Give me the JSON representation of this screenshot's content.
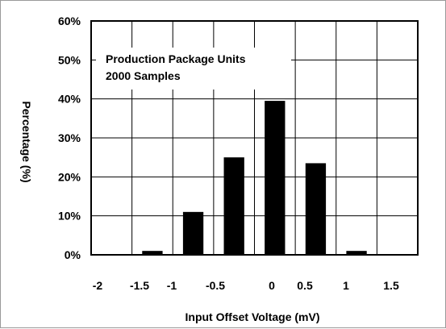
{
  "chart_data": {
    "type": "bar",
    "title": "",
    "xlabel": "Input Offset Voltage (mV)",
    "ylabel": "Percentage (%)",
    "xlim": [
      -2,
      2
    ],
    "ylim": [
      0,
      60
    ],
    "x_tick_labels": [
      "-2",
      "-1.5",
      "-1",
      "-0.5",
      "0",
      "0.5",
      "1",
      "1.5"
    ],
    "y_tick_labels": [
      "0%",
      "10%",
      "20%",
      "30%",
      "40%",
      "50%",
      "60%"
    ],
    "grid": true,
    "annotations": [
      "Production Package Units",
      "2000 Samples"
    ],
    "bars": [
      {
        "center": -1.25,
        "value": 1
      },
      {
        "center": -0.75,
        "value": 11
      },
      {
        "center": -0.25,
        "value": 25
      },
      {
        "center": 0.25,
        "value": 39.5
      },
      {
        "center": 0.75,
        "value": 23.5
      },
      {
        "center": 1.25,
        "value": 1
      }
    ],
    "bar_color": "#000000"
  }
}
